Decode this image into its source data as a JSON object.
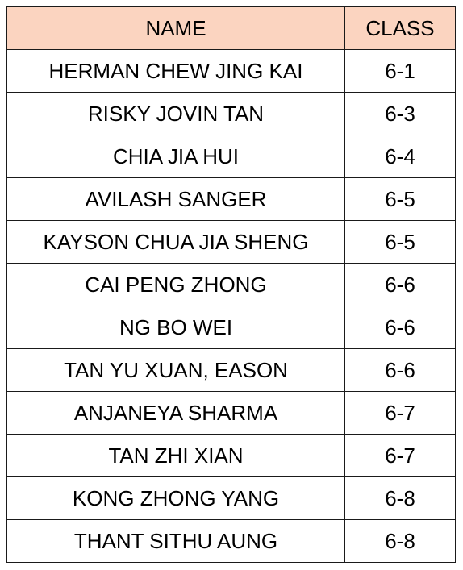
{
  "table": {
    "columns": [
      "NAME",
      "CLASS"
    ],
    "header_color": "#fbd4c0",
    "rows": [
      {
        "name": "HERMAN CHEW JING KAI",
        "class": "6-1"
      },
      {
        "name": "RISKY JOVIN TAN",
        "class": "6-3"
      },
      {
        "name": "CHIA JIA HUI",
        "class": "6-4"
      },
      {
        "name": "AVILASH SANGER",
        "class": "6-5"
      },
      {
        "name": "KAYSON CHUA JIA SHENG",
        "class": "6-5"
      },
      {
        "name": "CAI PENG ZHONG",
        "class": "6-6"
      },
      {
        "name": "NG BO WEI",
        "class": "6-6"
      },
      {
        "name": "TAN YU XUAN, EASON",
        "class": "6-6"
      },
      {
        "name": "ANJANEYA SHARMA",
        "class": "6-7"
      },
      {
        "name": "TAN ZHI XIAN",
        "class": "6-7"
      },
      {
        "name": "KONG ZHONG YANG",
        "class": "6-8"
      },
      {
        "name": "THANT SITHU AUNG",
        "class": "6-8"
      }
    ]
  }
}
